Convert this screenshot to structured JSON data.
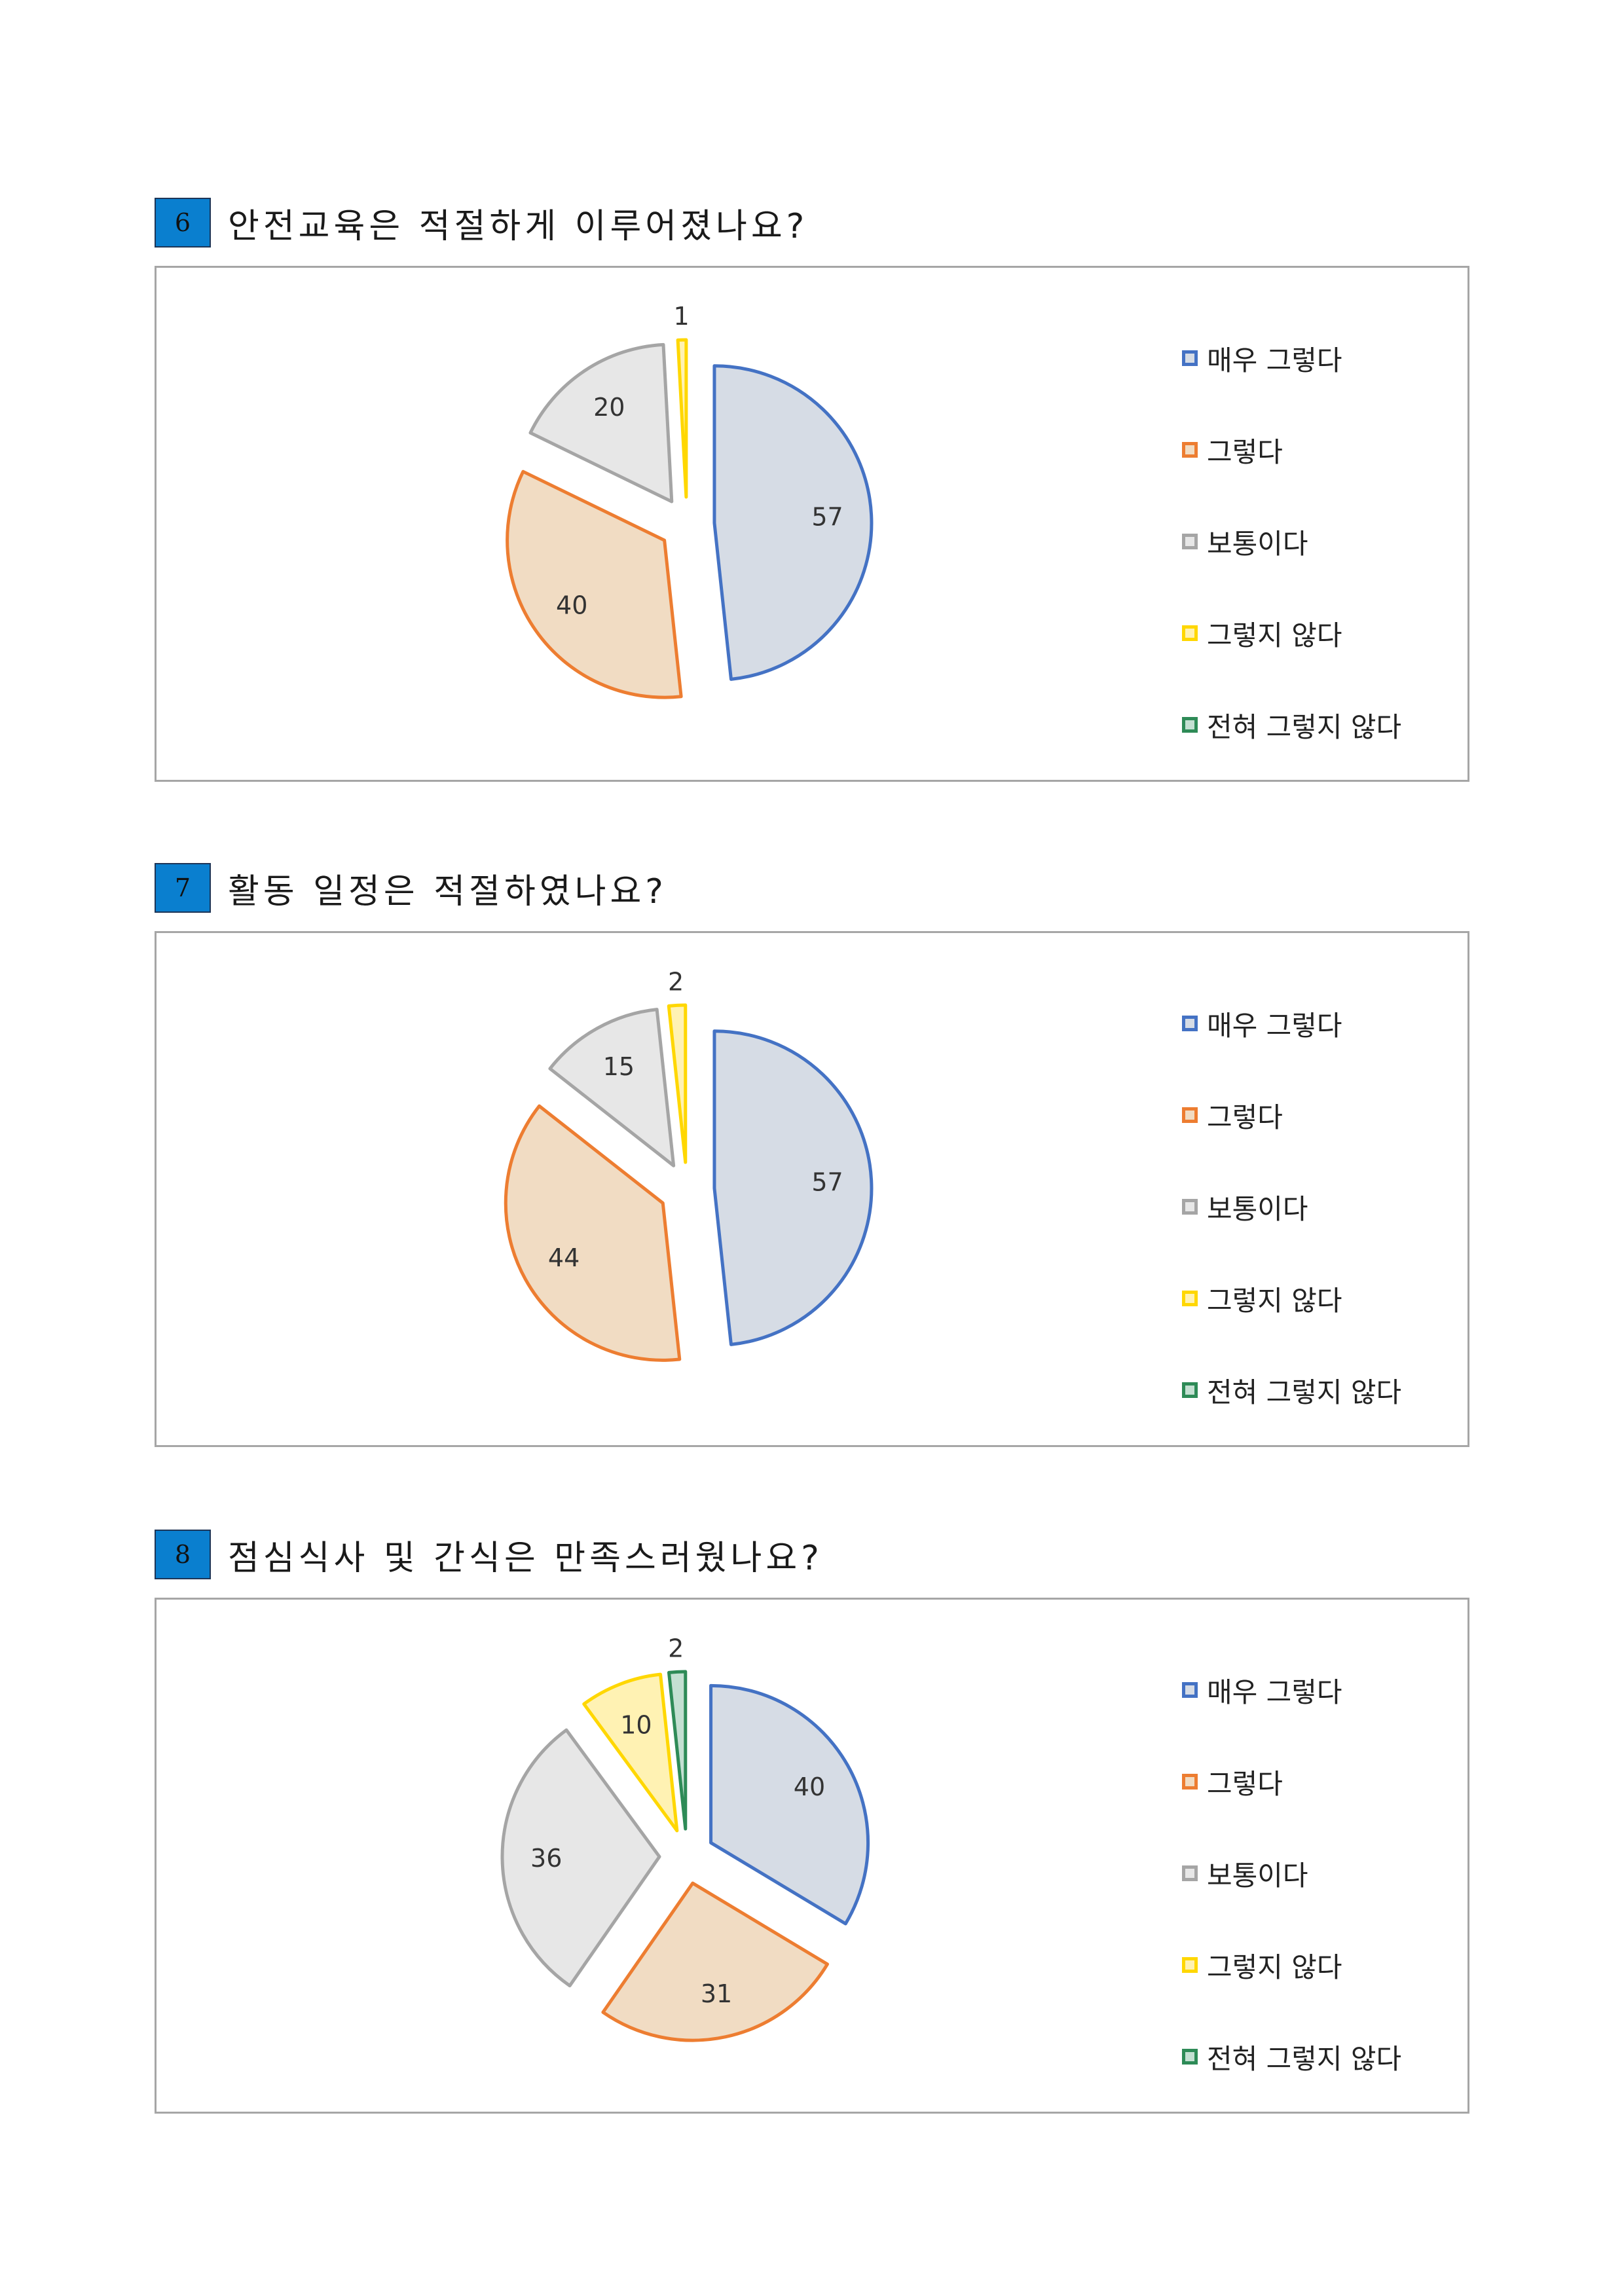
{
  "legend": [
    {
      "label": "매우 그렇다",
      "fill": "#d6dce5",
      "stroke": "#4472c4"
    },
    {
      "label": "그렇다",
      "fill": "#f1dcc3",
      "stroke": "#ed7d31"
    },
    {
      "label": "보통이다",
      "fill": "#e7e7e7",
      "stroke": "#a5a5a5"
    },
    {
      "label": "그렇지 않다",
      "fill": "#fff2b3",
      "stroke": "#ffd700"
    },
    {
      "label": "전혀 그렇지 않다",
      "fill": "#c4e0d2",
      "stroke": "#2e8b57"
    }
  ],
  "questions": [
    {
      "number": "6",
      "text": "안전교육은 적절하게 이루어졌나요?"
    },
    {
      "number": "7",
      "text": "활동 일정은 적절하였나요?"
    },
    {
      "number": "8",
      "text": "점심식사 및 간식은 만족스러웠나요?"
    }
  ],
  "chart_data": [
    {
      "type": "pie",
      "categories": [
        "매우 그렇다",
        "그렇다",
        "보통이다",
        "그렇지 않다",
        "전혀 그렇지 않다"
      ],
      "values": [
        57,
        40,
        20,
        1,
        0
      ],
      "exploded": true,
      "legend_position": "right"
    },
    {
      "type": "pie",
      "categories": [
        "매우 그렇다",
        "그렇다",
        "보통이다",
        "그렇지 않다",
        "전혀 그렇지 않다"
      ],
      "values": [
        57,
        44,
        15,
        2,
        0
      ],
      "exploded": true,
      "legend_position": "right"
    },
    {
      "type": "pie",
      "categories": [
        "매우 그렇다",
        "그렇다",
        "보통이다",
        "그렇지 않다",
        "전혀 그렇지 않다"
      ],
      "values": [
        40,
        31,
        36,
        10,
        2
      ],
      "exploded": true,
      "legend_position": "right"
    }
  ]
}
